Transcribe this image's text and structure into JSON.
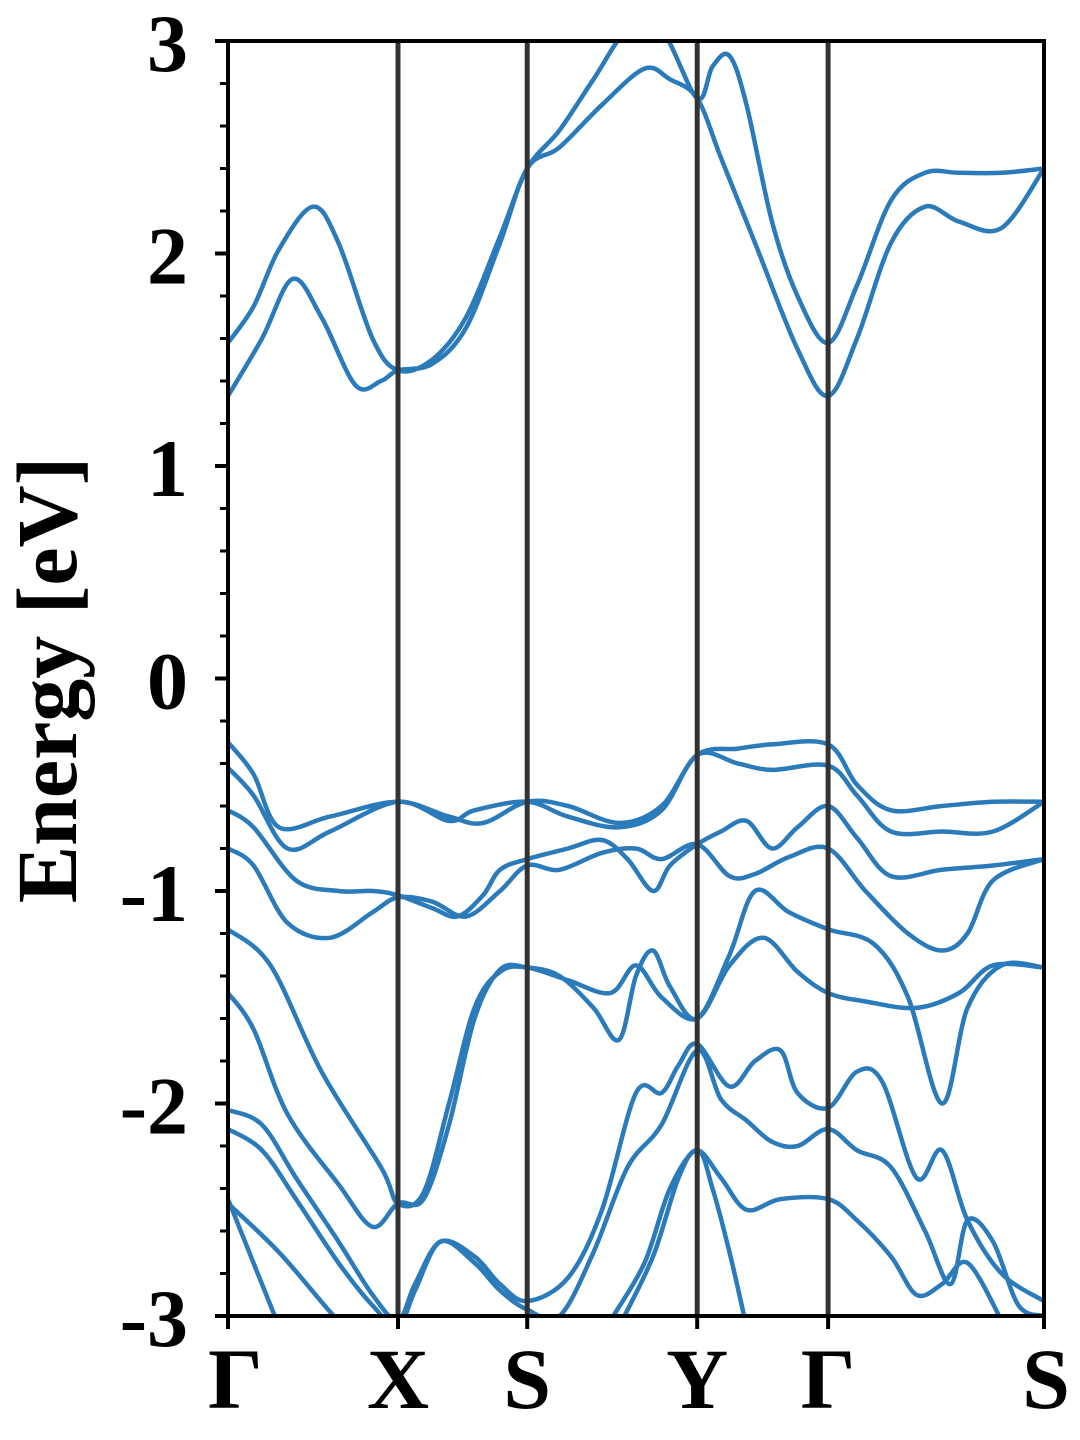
{
  "chart_data": {
    "type": "line",
    "title": "",
    "xlabel": "",
    "ylabel": "Energy [eV]",
    "ylim": [
      -3,
      3
    ],
    "xlim": [
      0,
      4.8
    ],
    "y_ticks": [
      -3,
      -2,
      -1,
      0,
      1,
      2,
      3
    ],
    "y_tick_labels": [
      "-3",
      "-2",
      "-1",
      "0",
      "1",
      "2",
      "3"
    ],
    "y_minor_step": 0.2,
    "x_ticks": [
      0,
      1,
      1.76,
      2.76,
      3.53,
      4.8
    ],
    "x_tick_labels": [
      "Γ",
      "X",
      "S",
      "Y",
      "Γ",
      "S"
    ],
    "high_symmetry_lines": [
      1,
      1.76,
      2.76,
      3.53
    ],
    "grid": false,
    "line_color": "#2b7bba",
    "divider_color": "#333333",
    "series": [
      {
        "points": [
          [
            0,
            1.33
          ],
          [
            0.2,
            1.6
          ],
          [
            0.38,
            1.88
          ],
          [
            0.55,
            1.7
          ],
          [
            0.75,
            1.38
          ],
          [
            0.9,
            1.4
          ],
          [
            1,
            1.45
          ],
          [
            1.2,
            1.48
          ],
          [
            1.4,
            1.65
          ],
          [
            1.6,
            2.05
          ],
          [
            1.76,
            2.4
          ],
          [
            1.95,
            2.5
          ],
          [
            2.2,
            2.7
          ],
          [
            2.45,
            2.87
          ],
          [
            2.6,
            2.82
          ],
          [
            2.76,
            2.73
          ],
          [
            2.9,
            2.45
          ],
          [
            3.1,
            2.05
          ],
          [
            3.35,
            1.55
          ],
          [
            3.53,
            1.33
          ],
          [
            3.7,
            1.6
          ],
          [
            3.9,
            2.05
          ],
          [
            4.1,
            2.22
          ],
          [
            4.3,
            2.15
          ],
          [
            4.55,
            2.12
          ],
          [
            4.8,
            2.4
          ]
        ]
      },
      {
        "points": [
          [
            0,
            1.58
          ],
          [
            0.15,
            1.75
          ],
          [
            0.3,
            2.02
          ],
          [
            0.5,
            2.22
          ],
          [
            0.65,
            2.05
          ],
          [
            0.85,
            1.6
          ],
          [
            1,
            1.45
          ],
          [
            1.2,
            1.5
          ],
          [
            1.4,
            1.7
          ],
          [
            1.6,
            2.08
          ],
          [
            1.76,
            2.4
          ],
          [
            1.95,
            2.58
          ],
          [
            2.15,
            2.82
          ],
          [
            2.35,
            3.05
          ],
          [
            2.55,
            3.05
          ],
          [
            2.76,
            2.73
          ],
          [
            2.85,
            2.88
          ],
          [
            2.95,
            2.93
          ],
          [
            3.05,
            2.7
          ],
          [
            3.2,
            2.15
          ],
          [
            3.35,
            1.8
          ],
          [
            3.53,
            1.58
          ],
          [
            3.7,
            1.85
          ],
          [
            3.9,
            2.25
          ],
          [
            4.1,
            2.38
          ],
          [
            4.3,
            2.38
          ],
          [
            4.55,
            2.38
          ],
          [
            4.8,
            2.4
          ]
        ]
      },
      {
        "points": [
          [
            0,
            -0.3
          ],
          [
            0.15,
            -0.45
          ],
          [
            0.3,
            -0.7
          ],
          [
            0.6,
            -0.65
          ],
          [
            1,
            -0.58
          ],
          [
            1.3,
            -0.65
          ],
          [
            1.5,
            -0.68
          ],
          [
            1.76,
            -0.58
          ],
          [
            2.0,
            -0.6
          ],
          [
            2.3,
            -0.68
          ],
          [
            2.55,
            -0.6
          ],
          [
            2.76,
            -0.36
          ],
          [
            3.0,
            -0.33
          ],
          [
            3.2,
            -0.31
          ],
          [
            3.53,
            -0.31
          ],
          [
            3.7,
            -0.5
          ],
          [
            3.9,
            -0.62
          ],
          [
            4.2,
            -0.6
          ],
          [
            4.5,
            -0.58
          ],
          [
            4.8,
            -0.58
          ]
        ]
      },
      {
        "points": [
          [
            0,
            -0.42
          ],
          [
            0.15,
            -0.55
          ],
          [
            0.35,
            -0.8
          ],
          [
            0.6,
            -0.72
          ],
          [
            1,
            -0.58
          ],
          [
            1.3,
            -0.67
          ],
          [
            1.45,
            -0.62
          ],
          [
            1.76,
            -0.58
          ],
          [
            2.0,
            -0.65
          ],
          [
            2.3,
            -0.7
          ],
          [
            2.55,
            -0.62
          ],
          [
            2.76,
            -0.36
          ],
          [
            3.0,
            -0.4
          ],
          [
            3.2,
            -0.43
          ],
          [
            3.53,
            -0.41
          ],
          [
            3.7,
            -0.55
          ],
          [
            3.9,
            -0.72
          ],
          [
            4.2,
            -0.72
          ],
          [
            4.5,
            -0.72
          ],
          [
            4.8,
            -0.58
          ]
        ]
      },
      {
        "points": [
          [
            0,
            -0.62
          ],
          [
            0.15,
            -0.7
          ],
          [
            0.4,
            -0.95
          ],
          [
            0.65,
            -1.0
          ],
          [
            0.85,
            -1.0
          ],
          [
            1,
            -1.02
          ],
          [
            1.2,
            -1.08
          ],
          [
            1.35,
            -1.12
          ],
          [
            1.5,
            -1.02
          ],
          [
            1.6,
            -0.9
          ],
          [
            1.76,
            -0.85
          ],
          [
            2.0,
            -0.8
          ],
          [
            2.2,
            -0.76
          ],
          [
            2.35,
            -0.85
          ],
          [
            2.5,
            -1.0
          ],
          [
            2.6,
            -0.88
          ],
          [
            2.76,
            -0.78
          ],
          [
            2.9,
            -0.72
          ],
          [
            3.05,
            -0.67
          ],
          [
            3.2,
            -0.8
          ],
          [
            3.35,
            -0.7
          ],
          [
            3.53,
            -0.6
          ],
          [
            3.7,
            -0.75
          ],
          [
            3.9,
            -0.93
          ],
          [
            4.2,
            -0.9
          ],
          [
            4.5,
            -0.88
          ],
          [
            4.8,
            -0.85
          ]
        ]
      },
      {
        "points": [
          [
            0,
            -0.8
          ],
          [
            0.15,
            -0.88
          ],
          [
            0.35,
            -1.15
          ],
          [
            0.6,
            -1.22
          ],
          [
            0.85,
            -1.1
          ],
          [
            1,
            -1.03
          ],
          [
            1.2,
            -1.05
          ],
          [
            1.4,
            -1.12
          ],
          [
            1.6,
            -1.0
          ],
          [
            1.76,
            -0.88
          ],
          [
            1.95,
            -0.9
          ],
          [
            2.2,
            -0.82
          ],
          [
            2.4,
            -0.8
          ],
          [
            2.55,
            -0.85
          ],
          [
            2.76,
            -0.78
          ],
          [
            2.95,
            -0.93
          ],
          [
            3.1,
            -0.92
          ],
          [
            3.3,
            -0.84
          ],
          [
            3.53,
            -0.8
          ],
          [
            3.75,
            -1.0
          ],
          [
            4.0,
            -1.2
          ],
          [
            4.2,
            -1.28
          ],
          [
            4.35,
            -1.2
          ],
          [
            4.5,
            -0.95
          ],
          [
            4.8,
            -0.85
          ]
        ]
      },
      {
        "points": [
          [
            0,
            -1.18
          ],
          [
            0.25,
            -1.35
          ],
          [
            0.55,
            -1.85
          ],
          [
            0.9,
            -2.3
          ],
          [
            1,
            -2.47
          ],
          [
            1.15,
            -2.42
          ],
          [
            1.3,
            -2.0
          ],
          [
            1.45,
            -1.55
          ],
          [
            1.6,
            -1.38
          ],
          [
            1.76,
            -1.36
          ],
          [
            2.0,
            -1.42
          ],
          [
            2.25,
            -1.48
          ],
          [
            2.4,
            -1.35
          ],
          [
            2.55,
            -1.5
          ],
          [
            2.76,
            -1.6
          ],
          [
            2.95,
            -1.35
          ],
          [
            3.15,
            -1.22
          ],
          [
            3.35,
            -1.38
          ],
          [
            3.53,
            -1.48
          ],
          [
            3.75,
            -1.52
          ],
          [
            4.05,
            -1.55
          ],
          [
            4.3,
            -1.48
          ],
          [
            4.5,
            -1.35
          ],
          [
            4.8,
            -1.36
          ]
        ]
      },
      {
        "points": [
          [
            0,
            -1.48
          ],
          [
            0.15,
            -1.65
          ],
          [
            0.35,
            -2.05
          ],
          [
            0.65,
            -2.38
          ],
          [
            0.85,
            -2.58
          ],
          [
            1,
            -2.47
          ],
          [
            1.15,
            -2.45
          ],
          [
            1.3,
            -2.1
          ],
          [
            1.45,
            -1.6
          ],
          [
            1.6,
            -1.37
          ],
          [
            1.76,
            -1.36
          ],
          [
            1.95,
            -1.4
          ],
          [
            2.15,
            -1.55
          ],
          [
            2.3,
            -1.7
          ],
          [
            2.4,
            -1.4
          ],
          [
            2.5,
            -1.28
          ],
          [
            2.6,
            -1.45
          ],
          [
            2.76,
            -1.6
          ],
          [
            2.95,
            -1.3
          ],
          [
            3.1,
            -1.0
          ],
          [
            3.3,
            -1.1
          ],
          [
            3.53,
            -1.18
          ],
          [
            3.8,
            -1.25
          ],
          [
            4.0,
            -1.5
          ],
          [
            4.2,
            -2.0
          ],
          [
            4.35,
            -1.55
          ],
          [
            4.55,
            -1.35
          ],
          [
            4.8,
            -1.36
          ]
        ]
      },
      {
        "points": [
          [
            0,
            -2.03
          ],
          [
            0.2,
            -2.1
          ],
          [
            0.4,
            -2.35
          ],
          [
            0.65,
            -2.65
          ],
          [
            0.85,
            -2.9
          ],
          [
            1,
            -3.02
          ],
          [
            1.1,
            -2.85
          ],
          [
            1.25,
            -2.65
          ],
          [
            1.45,
            -2.72
          ],
          [
            1.6,
            -2.85
          ],
          [
            1.76,
            -2.93
          ],
          [
            2.0,
            -2.82
          ],
          [
            2.2,
            -2.5
          ],
          [
            2.4,
            -1.95
          ],
          [
            2.55,
            -1.95
          ],
          [
            2.65,
            -1.82
          ],
          [
            2.76,
            -1.72
          ],
          [
            2.95,
            -1.92
          ],
          [
            3.1,
            -1.8
          ],
          [
            3.25,
            -1.75
          ],
          [
            3.35,
            -1.95
          ],
          [
            3.53,
            -2.02
          ],
          [
            3.7,
            -1.85
          ],
          [
            3.85,
            -1.9
          ],
          [
            4.05,
            -2.35
          ],
          [
            4.2,
            -2.22
          ],
          [
            4.35,
            -2.55
          ],
          [
            4.55,
            -2.8
          ],
          [
            4.8,
            -2.93
          ]
        ]
      },
      {
        "points": [
          [
            0,
            -2.12
          ],
          [
            0.2,
            -2.22
          ],
          [
            0.4,
            -2.45
          ],
          [
            0.65,
            -2.75
          ],
          [
            0.85,
            -2.95
          ],
          [
            1,
            -3.05
          ],
          [
            1.1,
            -2.88
          ],
          [
            1.25,
            -2.65
          ],
          [
            1.45,
            -2.75
          ],
          [
            1.6,
            -2.88
          ],
          [
            1.76,
            -2.97
          ],
          [
            1.95,
            -3.0
          ],
          [
            2.15,
            -2.7
          ],
          [
            2.35,
            -2.3
          ],
          [
            2.55,
            -2.1
          ],
          [
            2.76,
            -1.75
          ],
          [
            2.9,
            -1.98
          ],
          [
            3.05,
            -2.08
          ],
          [
            3.2,
            -2.18
          ],
          [
            3.35,
            -2.2
          ],
          [
            3.53,
            -2.12
          ],
          [
            3.7,
            -2.22
          ],
          [
            3.9,
            -2.3
          ],
          [
            4.1,
            -2.6
          ],
          [
            4.25,
            -2.85
          ],
          [
            4.35,
            -2.55
          ],
          [
            4.5,
            -2.65
          ],
          [
            4.65,
            -2.95
          ],
          [
            4.8,
            -3.0
          ]
        ]
      },
      {
        "points": [
          [
            0,
            -2.45
          ],
          [
            0.15,
            -2.75
          ],
          [
            0.3,
            -3.05
          ]
        ]
      },
      {
        "points": [
          [
            0,
            -2.47
          ],
          [
            0.3,
            -2.7
          ],
          [
            0.6,
            -2.98
          ],
          [
            0.8,
            -3.15
          ]
        ]
      },
      {
        "points": [
          [
            2.3,
            -3.05
          ],
          [
            2.5,
            -2.72
          ],
          [
            2.65,
            -2.35
          ],
          [
            2.76,
            -2.22
          ],
          [
            2.9,
            -2.35
          ],
          [
            3.05,
            -2.5
          ],
          [
            3.25,
            -2.45
          ],
          [
            3.53,
            -2.45
          ],
          [
            3.7,
            -2.55
          ],
          [
            3.9,
            -2.72
          ],
          [
            4.05,
            -2.9
          ],
          [
            4.2,
            -2.85
          ],
          [
            4.35,
            -2.75
          ],
          [
            4.55,
            -3.02
          ]
        ]
      },
      {
        "points": [
          [
            2.25,
            -3.02
          ],
          [
            2.45,
            -2.75
          ],
          [
            2.6,
            -2.4
          ],
          [
            2.76,
            -2.22
          ],
          [
            2.85,
            -2.4
          ],
          [
            2.95,
            -2.7
          ],
          [
            3.05,
            -3.05
          ]
        ]
      }
    ]
  }
}
